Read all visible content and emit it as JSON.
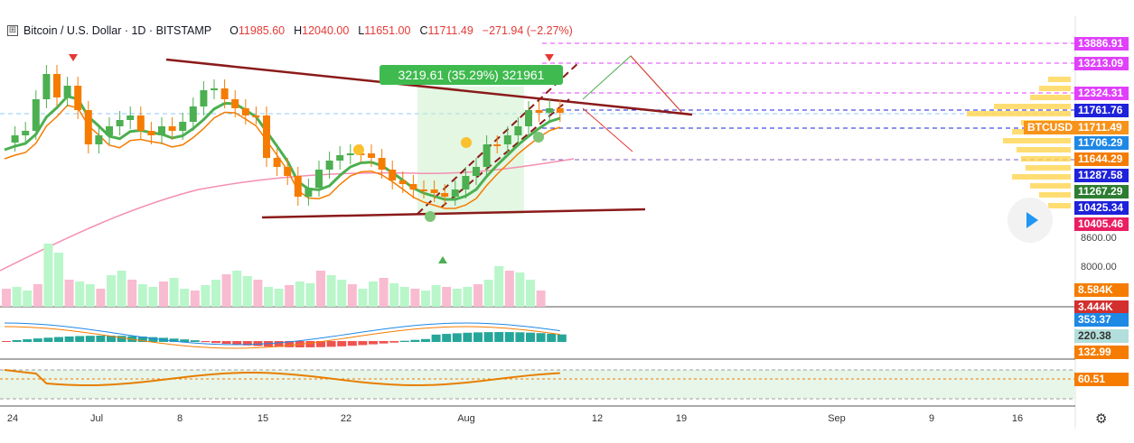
{
  "header": {
    "expand_icon": "⊞",
    "symbol_title": "Bitcoin / U.S. Dollar · 1D · BITSTAMP",
    "open_label": "O",
    "open_value": "11985.60",
    "high_label": "H",
    "high_value": "12040.00",
    "low_label": "L",
    "low_value": "11651.00",
    "close_label": "C",
    "close_value": "11711.49",
    "change": "−271.94 (−2.27%)"
  },
  "measure_label": "3219.61 (35.29%) 321961",
  "price_labels": [
    {
      "text": "13886.91",
      "color": "#e040fb"
    },
    {
      "text": "13213.09",
      "color": "#e040fb"
    },
    {
      "text": "12324.31",
      "color": "#e040fb"
    },
    {
      "text": "11761.76",
      "color": "#1e22d9"
    },
    {
      "text": "11711.49",
      "color": "#f7931a"
    },
    {
      "text": "11706.29",
      "color": "#1e88e5"
    },
    {
      "text": "11644.29",
      "color": "#f57c00"
    },
    {
      "text": "11287.58",
      "color": "#1e22d9"
    },
    {
      "text": "11267.29",
      "color": "#2e7d32"
    },
    {
      "text": "10425.34",
      "color": "#1e22d9"
    },
    {
      "text": "10405.46",
      "color": "#e91e63"
    }
  ],
  "btcusd_tag": "BTCUSD",
  "axis_prices": [
    "8600.00",
    "8000.00"
  ],
  "volume_labels": [
    {
      "text": "8.584K",
      "color": "#f57c00"
    },
    {
      "text": "3.444K",
      "color": "#d32f2f"
    }
  ],
  "macd_labels": [
    {
      "text": "353.37",
      "color": "#1e88e5"
    },
    {
      "text": "220.38",
      "color": "#9e9e9e"
    },
    {
      "text": "132.99",
      "color": "#f57c00"
    }
  ],
  "rsi_label": {
    "text": "60.51",
    "color": "#f57c00"
  },
  "x_axis": [
    {
      "label": "24"
    },
    {
      "label": "Jul"
    },
    {
      "label": "8"
    },
    {
      "label": "15"
    },
    {
      "label": "22"
    },
    {
      "label": "Aug"
    },
    {
      "label": "12"
    },
    {
      "label": "19"
    },
    {
      "label": "Sep"
    },
    {
      "label": "9"
    },
    {
      "label": "16"
    }
  ],
  "settings_icon": "gear-icon",
  "colors": {
    "up": "#26a69a",
    "down": "#ef5350",
    "bull_candle": "#4caf50",
    "bear_candle": "#f57c00"
  }
}
